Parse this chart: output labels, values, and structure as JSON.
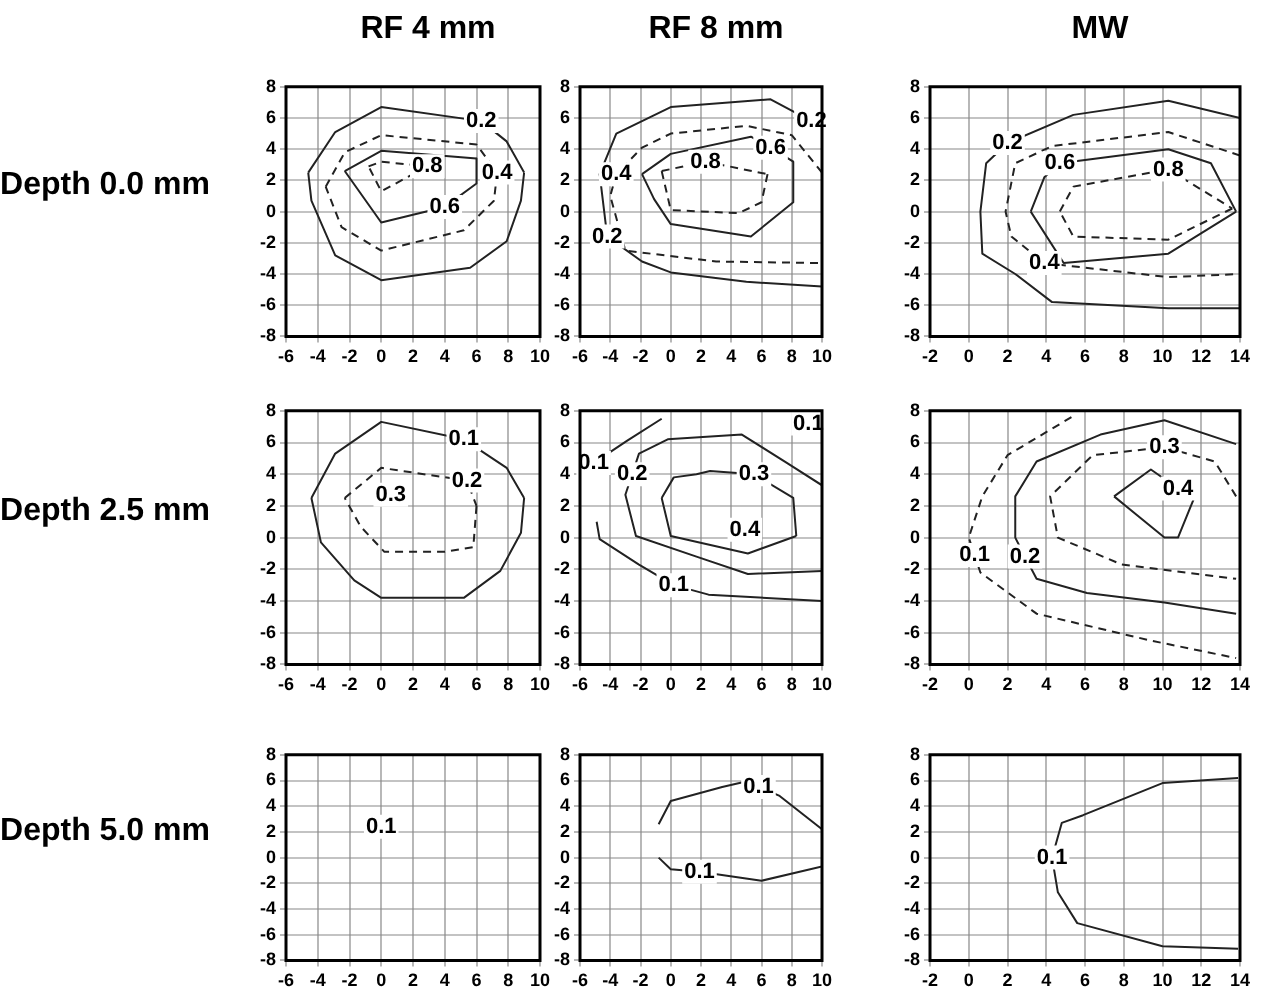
{
  "chart_data": [
    {
      "type": "line",
      "title": "RF 4 mm",
      "ylabel": "Depth 0.0 mm",
      "xlim": [
        -6,
        10
      ],
      "ylim": [
        -8,
        8
      ],
      "xticks": [
        -6,
        -4,
        -2,
        0,
        2,
        4,
        6,
        8,
        10
      ],
      "yticks": [
        -8,
        -6,
        -4,
        -2,
        0,
        2,
        4,
        6,
        8
      ],
      "grid": true,
      "marker": "none",
      "series": [
        {
          "color": "#222222",
          "line_style": "solid",
          "x": [
            -4.6,
            -2.9,
            0,
            6.3,
            7.9,
            9
          ],
          "values": [
            2.5,
            5.1,
            6.7,
            5.8,
            4.5,
            2.5
          ]
        },
        {
          "color": "#222222",
          "line_style": "solid",
          "x": [
            9,
            8.8,
            7.9,
            5.6,
            0,
            -2.9,
            -4.4,
            -4.6
          ],
          "values": [
            2.5,
            0.7,
            -1.9,
            -3.6,
            -4.4,
            -2.8,
            0.7,
            2.5
          ]
        },
        {
          "color": "#222222",
          "line_style": "dashed",
          "x": [
            -3.5,
            -2.3,
            0,
            6,
            7.3
          ],
          "values": [
            1.6,
            3.8,
            4.9,
            4.3,
            2.5
          ]
        },
        {
          "color": "#222222",
          "line_style": "dashed",
          "x": [
            7.3,
            7.1,
            5.2,
            0,
            -2.5,
            -3.5
          ],
          "values": [
            2.5,
            0.7,
            -1.2,
            -2.5,
            -1,
            1.6
          ]
        },
        {
          "color": "#222222",
          "line_style": "solid",
          "x": [
            -2.3,
            0,
            6
          ],
          "values": [
            2.6,
            3.9,
            3.4
          ]
        },
        {
          "color": "#222222",
          "line_style": "solid",
          "x": [
            6,
            6,
            4,
            0,
            -2.3
          ],
          "values": [
            3.4,
            1.8,
            0.3,
            -0.7,
            2.6
          ]
        },
        {
          "color": "#222222",
          "line_style": "dashed",
          "x": [
            -0.8,
            0,
            2.9
          ],
          "values": [
            2.9,
            3.2,
            2.9
          ]
        },
        {
          "color": "#222222",
          "line_style": "dashed",
          "x": [
            2.9,
            0,
            -0.8
          ],
          "values": [
            2.9,
            1.3,
            2.9
          ]
        }
      ],
      "annotations": [
        {
          "text": "0.2",
          "x": 6.3,
          "y": 5.8
        },
        {
          "text": "0.4",
          "x": 7.3,
          "y": 2.5
        },
        {
          "text": "0.6",
          "x": 4,
          "y": 0.3
        },
        {
          "text": "0.8",
          "x": 2.9,
          "y": 2.9
        }
      ]
    },
    {
      "type": "line",
      "title": "RF 8 mm",
      "xlim": [
        -6,
        10
      ],
      "ylim": [
        -8,
        8
      ],
      "xticks": [
        -6,
        -4,
        -2,
        0,
        2,
        4,
        6,
        8,
        10
      ],
      "yticks": [
        -8,
        -6,
        -4,
        -2,
        0,
        2,
        4,
        6,
        8
      ],
      "grid": true,
      "marker": "none",
      "series": [
        {
          "color": "#222222",
          "line_style": "solid",
          "x": [
            10,
            9.3,
            6.6,
            0,
            -3.6,
            -4.7,
            -4.2,
            -1.9,
            0,
            5,
            10
          ],
          "values": [
            5.4,
            5.8,
            7.2,
            6.7,
            5,
            2.4,
            -1.6,
            -3.2,
            -3.9,
            -4.5,
            -4.8
          ]
        },
        {
          "color": "#222222",
          "line_style": "dashed",
          "x": [
            10,
            8,
            5,
            0,
            -1.9,
            -3.6,
            -4,
            -3,
            3,
            10
          ],
          "values": [
            2.5,
            4.9,
            5.5,
            5,
            4.1,
            2.4,
            1,
            -2.5,
            -3.2,
            -3.3
          ]
        },
        {
          "color": "#222222",
          "line_style": "solid",
          "x": [
            -1.9,
            0,
            5.3,
            6.6,
            8.1
          ],
          "values": [
            2.4,
            3.7,
            4.8,
            4.1,
            3.2
          ]
        },
        {
          "color": "#222222",
          "line_style": "solid",
          "x": [
            8.1,
            8.1,
            5.3,
            0,
            -1.1,
            -1.9
          ],
          "values": [
            3.2,
            0.6,
            -1.6,
            -0.8,
            0.8,
            2.4
          ]
        },
        {
          "color": "#222222",
          "line_style": "dashed",
          "x": [
            -0.6,
            2.3,
            6.4
          ],
          "values": [
            2.6,
            3.2,
            2.4
          ]
        },
        {
          "color": "#222222",
          "line_style": "dashed",
          "x": [
            6.4,
            6,
            4.5,
            0,
            -0.6
          ],
          "values": [
            2.4,
            0.6,
            -0.1,
            0.1,
            2.6
          ]
        }
      ],
      "annotations": [
        {
          "text": "0.2",
          "x": 9.3,
          "y": 5.8
        },
        {
          "text": "0.4",
          "x": -3.6,
          "y": 2.4
        },
        {
          "text": "0.2",
          "x": -4.2,
          "y": -1.6
        },
        {
          "text": "0.8",
          "x": 2.3,
          "y": 3.2
        },
        {
          "text": "0.6",
          "x": 6.6,
          "y": 4.1
        }
      ]
    },
    {
      "type": "line",
      "title": "MW",
      "xlim": [
        -2,
        14
      ],
      "ylim": [
        -8,
        8
      ],
      "xticks": [
        -2,
        0,
        2,
        4,
        6,
        8,
        10,
        12,
        14
      ],
      "yticks": [
        -8,
        -6,
        -4,
        -2,
        0,
        2,
        4,
        6,
        8
      ],
      "grid": true,
      "marker": "none",
      "series": [
        {
          "color": "#222222",
          "line_style": "solid",
          "x": [
            14,
            10.3,
            5.4,
            2,
            0.9,
            0.6,
            0.7,
            2.4,
            4.3,
            10.3,
            14
          ],
          "values": [
            6,
            7.1,
            6.2,
            4.4,
            3.1,
            0,
            -2.7,
            -4,
            -5.8,
            -6.2,
            -6.2
          ]
        },
        {
          "color": "#222222",
          "line_style": "dashed",
          "x": [
            14,
            10.3,
            4.3,
            2.4,
            1.9,
            2.2,
            3.9,
            10.3,
            14
          ],
          "values": [
            3.6,
            5.1,
            4.2,
            3.1,
            0,
            -1.6,
            -3.3,
            -4.2,
            -4
          ]
        },
        {
          "color": "#222222",
          "line_style": "solid",
          "x": [
            3.2,
            3.9,
            4.7,
            10.3,
            12.5,
            13.8
          ],
          "values": [
            0,
            2.2,
            3.1,
            4,
            3.1,
            0
          ]
        },
        {
          "color": "#222222",
          "line_style": "solid",
          "x": [
            13.8,
            10.3,
            4.9,
            3.2
          ],
          "values": [
            0,
            -2.7,
            -3.3,
            0
          ]
        },
        {
          "color": "#222222",
          "line_style": "dashed",
          "x": [
            4.7,
            5.4,
            10.3,
            13.6
          ],
          "values": [
            0,
            1.6,
            2.7,
            0.2
          ]
        },
        {
          "color": "#222222",
          "line_style": "dashed",
          "x": [
            13.6,
            10.3,
            5.4,
            4.7
          ],
          "values": [
            0.2,
            -1.8,
            -1.6,
            0
          ]
        }
      ],
      "annotations": [
        {
          "text": "0.2",
          "x": 2,
          "y": 4.4
        },
        {
          "text": "0.6",
          "x": 4.7,
          "y": 3.1
        },
        {
          "text": "0.8",
          "x": 10.3,
          "y": 2.7
        },
        {
          "text": "0.4",
          "x": 3.9,
          "y": -3.3
        }
      ]
    },
    {
      "type": "line",
      "ylabel": "Depth 2.5 mm",
      "xlim": [
        -6,
        10
      ],
      "ylim": [
        -8,
        8
      ],
      "xticks": [
        -6,
        -4,
        -2,
        0,
        2,
        4,
        6,
        8,
        10
      ],
      "yticks": [
        -8,
        -6,
        -4,
        -2,
        0,
        2,
        4,
        6,
        8
      ],
      "grid": true,
      "marker": "none",
      "series": [
        {
          "color": "#222222",
          "line_style": "solid",
          "x": [
            -4.4,
            -2.9,
            0,
            5.2,
            7.9,
            9
          ],
          "values": [
            2.5,
            5.3,
            7.3,
            6.2,
            4.4,
            2.5
          ]
        },
        {
          "color": "#222222",
          "line_style": "solid",
          "x": [
            9,
            8.8,
            7.5,
            5.2,
            0,
            -1.7,
            -3.8,
            -4.4
          ],
          "values": [
            2.5,
            0.3,
            -2.1,
            -3.8,
            -3.8,
            -2.7,
            -0.3,
            2.5
          ]
        },
        {
          "color": "#222222",
          "line_style": "dashed",
          "x": [
            -2.3,
            0,
            5.4,
            6
          ],
          "values": [
            2.5,
            4.4,
            3.6,
            2
          ]
        },
        {
          "color": "#222222",
          "line_style": "dashed",
          "x": [
            6,
            5.8,
            4,
            0.2,
            -1.3,
            -2.3
          ],
          "values": [
            2,
            -0.6,
            -0.9,
            -0.9,
            0.7,
            2.5
          ]
        }
      ],
      "annotations": [
        {
          "text": "0.1",
          "x": 5.2,
          "y": 6.2
        },
        {
          "text": "0.2",
          "x": 5.4,
          "y": 3.6
        },
        {
          "text": "0.3",
          "x": 0.6,
          "y": 2.7
        }
      ]
    },
    {
      "type": "line",
      "xlim": [
        -6,
        10
      ],
      "ylim": [
        -8,
        8
      ],
      "xticks": [
        -6,
        -4,
        -2,
        0,
        2,
        4,
        6,
        8,
        10
      ],
      "yticks": [
        -8,
        -6,
        -4,
        -2,
        0,
        2,
        4,
        6,
        8
      ],
      "grid": true,
      "marker": "none",
      "series": [
        {
          "color": "#222222",
          "line_style": "solid",
          "x": [
            -5.1,
            -2.9,
            -0.6
          ],
          "values": [
            4.7,
            6.1,
            7.5
          ]
        },
        {
          "color": "#222222",
          "line_style": "solid",
          "x": [
            -4.9,
            -4.7,
            -2.1,
            0.2,
            2.5,
            10
          ],
          "values": [
            1,
            -0.1,
            -1.7,
            -3,
            -3.6,
            -4
          ]
        },
        {
          "color": "#222222",
          "line_style": "solid",
          "x": [
            10,
            7.7,
            4.7,
            -0.2,
            -2.1,
            -2.55,
            -3,
            -2.3,
            1.7,
            5.1,
            10
          ],
          "values": [
            3.3,
            4.7,
            6.5,
            6.2,
            5.3,
            4,
            2.7,
            0.1,
            -1.2,
            -2.3,
            -2.1
          ]
        },
        {
          "color": "#222222",
          "line_style": "solid",
          "x": [
            -0.6,
            0.2,
            1.7,
            2.6,
            5.5,
            8.1,
            8.3
          ],
          "values": [
            2.5,
            3.8,
            4,
            4.2,
            4,
            2.5,
            0.1
          ]
        },
        {
          "color": "#222222",
          "line_style": "solid",
          "x": [
            8.3,
            5.1,
            0,
            -0.6
          ],
          "values": [
            0.1,
            -1,
            0.1,
            2.5
          ]
        }
      ],
      "annotations": [
        {
          "text": "0.1",
          "x": 9.1,
          "y": 7.2
        },
        {
          "text": "0.1",
          "x": -5.1,
          "y": 4.7
        },
        {
          "text": "0.2",
          "x": -2.55,
          "y": 4
        },
        {
          "text": "0.1",
          "x": 0.2,
          "y": -3
        },
        {
          "text": "0.3",
          "x": 5.5,
          "y": 4
        },
        {
          "text": "0.4",
          "x": 4.9,
          "y": 0.5
        }
      ]
    },
    {
      "type": "line",
      "xlim": [
        -2,
        14
      ],
      "ylim": [
        -8,
        8
      ],
      "xticks": [
        -2,
        0,
        2,
        4,
        6,
        8,
        10,
        12,
        14
      ],
      "yticks": [
        -8,
        -6,
        -4,
        -2,
        0,
        2,
        4,
        6,
        8
      ],
      "grid": true,
      "marker": "none",
      "series": [
        {
          "color": "#222222",
          "line_style": "dashed",
          "x": [
            5.3,
            2,
            0.7,
            0,
            0.3,
            0.6,
            3.5,
            9.4,
            13.8
          ],
          "values": [
            7.6,
            5.2,
            2.6,
            0,
            -1.1,
            -2.2,
            -4.8,
            -6.5,
            -7.6
          ]
        },
        {
          "color": "#222222",
          "line_style": "solid",
          "x": [
            13.8,
            10.1,
            6.8,
            3.5,
            2.4,
            2.4,
            2.9,
            3.5,
            6.1,
            10.1,
            13.8
          ],
          "values": [
            5.9,
            7.4,
            6.5,
            4.8,
            2.6,
            0,
            -1.2,
            -2.6,
            -3.5,
            -4.1,
            -4.8
          ]
        },
        {
          "color": "#222222",
          "line_style": "dashed",
          "x": [
            13.8,
            12.7,
            10.1,
            6.4,
            4.2,
            4.6,
            7.9,
            13.8
          ],
          "values": [
            2.6,
            4.8,
            5.7,
            5.2,
            2.6,
            0,
            -1.7,
            -2.6
          ]
        },
        {
          "color": "#222222",
          "line_style": "solid",
          "x": [
            7.5,
            9.4,
            10.8,
            11.6
          ],
          "values": [
            2.6,
            4.3,
            3.1,
            2.4
          ]
        },
        {
          "color": "#222222",
          "line_style": "solid",
          "x": [
            11.6,
            10.8,
            10.1,
            7.5
          ],
          "values": [
            2.4,
            0,
            0,
            2.6
          ]
        }
      ],
      "annotations": [
        {
          "text": "0.1",
          "x": 0.3,
          "y": -1.1
        },
        {
          "text": "0.2",
          "x": 2.9,
          "y": -1.2
        },
        {
          "text": "0.3",
          "x": 10.1,
          "y": 5.7
        },
        {
          "text": "0.4",
          "x": 10.8,
          "y": 3.1
        }
      ]
    },
    {
      "type": "line",
      "ylabel": "Depth 5.0 mm",
      "xlim": [
        -6,
        10
      ],
      "ylim": [
        -8,
        8
      ],
      "xticks": [
        -6,
        -4,
        -2,
        0,
        2,
        4,
        6,
        8,
        10
      ],
      "yticks": [
        -8,
        -6,
        -4,
        -2,
        0,
        2,
        4,
        6,
        8
      ],
      "grid": true,
      "marker": "none",
      "annotations": [
        {
          "text": "0.1",
          "x": 0,
          "y": 2.4
        }
      ]
    },
    {
      "type": "line",
      "xlim": [
        -6,
        10
      ],
      "ylim": [
        -8,
        8
      ],
      "xticks": [
        -6,
        -4,
        -2,
        0,
        2,
        4,
        6,
        8,
        10
      ],
      "yticks": [
        -8,
        -6,
        -4,
        -2,
        0,
        2,
        4,
        6,
        8
      ],
      "grid": true,
      "marker": "none",
      "series": [
        {
          "color": "#222222",
          "line_style": "solid",
          "x": [
            -0.8,
            0,
            3.4,
            4.9,
            5.8,
            7.2,
            10
          ],
          "values": [
            2.6,
            4.4,
            5.5,
            5.9,
            5.5,
            4.8,
            2.2
          ]
        },
        {
          "color": "#222222",
          "line_style": "solid",
          "x": [
            -0.8,
            0,
            1.9,
            6,
            10
          ],
          "values": [
            0,
            -0.9,
            -1.1,
            -1.8,
            -0.7
          ]
        }
      ],
      "annotations": [
        {
          "text": "0.1",
          "x": 5.8,
          "y": 5.5
        },
        {
          "text": "0.1",
          "x": 1.9,
          "y": -1.1
        }
      ]
    },
    {
      "type": "line",
      "xlim": [
        -2,
        14
      ],
      "ylim": [
        -8,
        8
      ],
      "xticks": [
        -2,
        0,
        2,
        4,
        6,
        8,
        10,
        12,
        14
      ],
      "yticks": [
        -8,
        -6,
        -4,
        -2,
        0,
        2,
        4,
        6,
        8
      ],
      "grid": true,
      "marker": "none",
      "series": [
        {
          "color": "#222222",
          "line_style": "solid",
          "x": [
            13.9,
            10,
            5.9,
            4.8,
            4.3,
            4.6,
            5.6,
            10,
            13.9
          ],
          "values": [
            6.2,
            5.8,
            3.3,
            2.7,
            0,
            -2.7,
            -5.1,
            -6.9,
            -7.1
          ]
        }
      ],
      "annotations": [
        {
          "text": "0.1",
          "x": 4.3,
          "y": 0
        }
      ]
    }
  ]
}
